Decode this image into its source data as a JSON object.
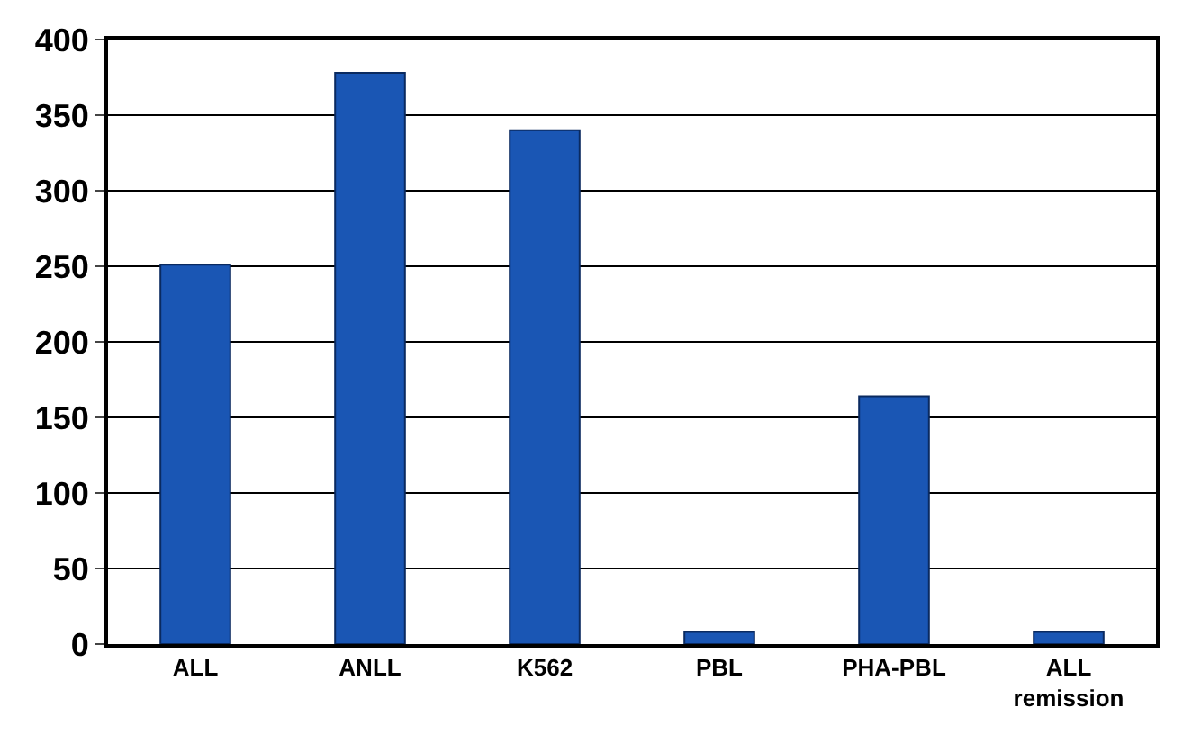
{
  "chart_data": {
    "type": "bar",
    "categories": [
      "ALL",
      "ANLL",
      "K562",
      "PBL",
      "PHA-PBL",
      "ALL\nremission"
    ],
    "values": [
      251,
      378,
      340,
      8,
      164,
      8
    ],
    "color": "#1a56b4",
    "ylim": [
      0,
      400
    ],
    "yticks": [
      0,
      50,
      100,
      150,
      200,
      250,
      300,
      350,
      400
    ],
    "grid": "y"
  }
}
